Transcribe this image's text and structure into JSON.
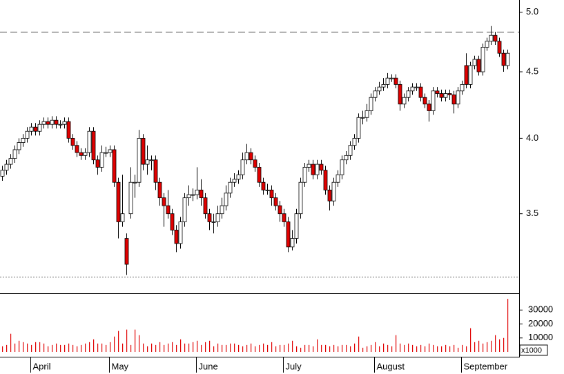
{
  "chart_data": [
    {
      "type": "candlestick",
      "categories": [
        null,
        null,
        null,
        null,
        null,
        null,
        null,
        "April",
        null,
        null,
        null,
        null,
        null,
        null,
        null,
        null,
        null,
        null,
        null,
        null,
        null,
        null,
        null,
        null,
        null,
        null,
        "May",
        null,
        null,
        null,
        null,
        null,
        null,
        null,
        null,
        null,
        null,
        null,
        null,
        null,
        null,
        null,
        null,
        null,
        null,
        null,
        null,
        "June",
        null,
        null,
        null,
        null,
        null,
        null,
        null,
        null,
        null,
        null,
        null,
        null,
        null,
        null,
        null,
        null,
        null,
        null,
        null,
        null,
        "July",
        null,
        null,
        null,
        null,
        null,
        null,
        null,
        null,
        null,
        null,
        null,
        null,
        null,
        null,
        null,
        null,
        null,
        null,
        null,
        null,
        null,
        "August",
        null,
        null,
        null,
        null,
        null,
        null,
        null,
        null,
        null,
        null,
        null,
        null,
        null,
        null,
        null,
        null,
        null,
        null,
        null,
        null,
        "September",
        null,
        null,
        null,
        null,
        null,
        null,
        null,
        null,
        null,
        null,
        null
      ],
      "open": [
        3.74,
        3.78,
        3.82,
        3.86,
        3.92,
        3.97,
        4.0,
        4.05,
        4.08,
        4.05,
        4.1,
        4.12,
        4.1,
        4.13,
        4.1,
        4.1,
        4.12,
        4.0,
        3.95,
        3.9,
        3.88,
        3.9,
        4.05,
        3.85,
        3.8,
        3.9,
        3.9,
        3.92,
        3.7,
        3.45,
        3.35,
        3.5,
        3.7,
        3.7,
        4.0,
        3.82,
        3.85,
        3.85,
        3.7,
        3.6,
        3.55,
        3.5,
        3.4,
        3.32,
        3.45,
        3.6,
        3.62,
        3.62,
        3.65,
        3.6,
        3.5,
        3.45,
        3.45,
        3.5,
        3.55,
        3.63,
        3.7,
        3.72,
        3.75,
        3.85,
        3.9,
        3.85,
        3.8,
        3.7,
        3.65,
        3.65,
        3.6,
        3.55,
        3.5,
        3.45,
        3.3,
        3.35,
        3.5,
        3.7,
        3.8,
        3.82,
        3.75,
        3.82,
        3.78,
        3.65,
        3.58,
        3.7,
        3.75,
        3.85,
        3.88,
        3.95,
        4.0,
        4.15,
        4.15,
        4.2,
        4.3,
        4.35,
        4.38,
        4.4,
        4.45,
        4.45,
        4.4,
        4.25,
        4.3,
        4.35,
        4.38,
        4.38,
        4.3,
        4.25,
        4.2,
        4.35,
        4.33,
        4.3,
        4.33,
        4.32,
        4.25,
        4.35,
        4.55,
        4.4,
        4.55,
        4.6,
        4.5,
        4.7,
        4.75,
        4.8,
        4.75,
        4.65,
        4.55
      ],
      "high": [
        3.81,
        3.85,
        3.89,
        3.95,
        4.0,
        4.03,
        4.08,
        4.11,
        4.11,
        4.13,
        4.15,
        4.15,
        4.16,
        4.16,
        4.13,
        4.15,
        4.15,
        4.03,
        3.98,
        3.93,
        3.93,
        4.08,
        4.08,
        3.88,
        3.95,
        3.94,
        3.95,
        3.95,
        3.73,
        3.75,
        3.38,
        3.8,
        3.75,
        4.06,
        4.03,
        3.95,
        3.88,
        3.88,
        3.73,
        3.63,
        3.65,
        3.53,
        3.43,
        3.48,
        3.63,
        3.68,
        3.66,
        3.8,
        3.72,
        3.63,
        3.53,
        3.5,
        3.55,
        3.6,
        3.68,
        3.73,
        3.76,
        3.78,
        3.9,
        3.96,
        3.93,
        3.88,
        3.83,
        3.73,
        3.69,
        3.68,
        3.63,
        3.58,
        3.53,
        3.48,
        3.4,
        3.53,
        3.73,
        3.83,
        3.85,
        3.85,
        3.85,
        3.85,
        3.81,
        3.68,
        3.73,
        3.78,
        3.88,
        3.91,
        3.98,
        4.03,
        4.18,
        4.2,
        4.25,
        4.33,
        4.38,
        4.42,
        4.45,
        4.49,
        4.48,
        4.48,
        4.43,
        4.33,
        4.38,
        4.41,
        4.41,
        4.41,
        4.33,
        4.28,
        4.38,
        4.38,
        4.36,
        4.36,
        4.36,
        4.35,
        4.38,
        4.43,
        4.65,
        4.58,
        4.63,
        4.63,
        4.73,
        4.78,
        4.88,
        4.83,
        4.78,
        4.68,
        4.68
      ],
      "low": [
        3.71,
        3.75,
        3.79,
        3.83,
        3.89,
        3.94,
        3.97,
        4.02,
        4.02,
        4.02,
        4.07,
        4.07,
        4.07,
        4.07,
        4.07,
        4.07,
        3.97,
        3.92,
        3.87,
        3.85,
        3.85,
        3.87,
        3.82,
        3.75,
        3.77,
        3.87,
        3.87,
        3.67,
        3.35,
        3.42,
        3.14,
        3.47,
        3.6,
        3.67,
        3.78,
        3.75,
        3.78,
        3.65,
        3.55,
        3.42,
        3.47,
        3.37,
        3.27,
        3.29,
        3.42,
        3.55,
        3.58,
        3.59,
        3.55,
        3.47,
        3.4,
        3.38,
        3.42,
        3.47,
        3.52,
        3.6,
        3.67,
        3.69,
        3.72,
        3.82,
        3.82,
        3.77,
        3.67,
        3.62,
        3.62,
        3.55,
        3.52,
        3.45,
        3.42,
        3.27,
        3.28,
        3.32,
        3.47,
        3.67,
        3.77,
        3.72,
        3.72,
        3.75,
        3.62,
        3.52,
        3.55,
        3.67,
        3.72,
        3.82,
        3.85,
        3.92,
        3.97,
        4.1,
        4.12,
        4.17,
        4.27,
        4.32,
        4.35,
        4.37,
        4.42,
        4.37,
        4.2,
        4.22,
        4.27,
        4.32,
        4.35,
        4.27,
        4.22,
        4.12,
        4.17,
        4.3,
        4.27,
        4.27,
        4.28,
        4.18,
        4.22,
        4.32,
        4.37,
        4.37,
        4.52,
        4.47,
        4.47,
        4.67,
        4.72,
        4.72,
        4.62,
        4.5,
        4.52
      ],
      "close": [
        3.78,
        3.82,
        3.86,
        3.92,
        3.97,
        4.0,
        4.05,
        4.08,
        4.05,
        4.1,
        4.12,
        4.1,
        4.13,
        4.1,
        4.1,
        4.12,
        4.0,
        3.95,
        3.9,
        3.88,
        3.9,
        4.05,
        3.85,
        3.8,
        3.9,
        3.9,
        3.92,
        3.7,
        3.45,
        3.5,
        3.2,
        3.7,
        3.7,
        4.0,
        3.82,
        3.85,
        3.85,
        3.7,
        3.6,
        3.55,
        3.5,
        3.4,
        3.32,
        3.45,
        3.6,
        3.62,
        3.62,
        3.65,
        3.6,
        3.5,
        3.45,
        3.45,
        3.5,
        3.55,
        3.63,
        3.7,
        3.72,
        3.75,
        3.85,
        3.9,
        3.85,
        3.8,
        3.7,
        3.65,
        3.65,
        3.6,
        3.55,
        3.5,
        3.45,
        3.3,
        3.35,
        3.5,
        3.7,
        3.8,
        3.82,
        3.75,
        3.82,
        3.78,
        3.65,
        3.58,
        3.7,
        3.75,
        3.85,
        3.88,
        3.95,
        4.0,
        4.15,
        4.15,
        4.2,
        4.3,
        4.35,
        4.38,
        4.4,
        4.45,
        4.45,
        4.4,
        4.25,
        4.3,
        4.35,
        4.38,
        4.38,
        4.3,
        4.25,
        4.2,
        4.35,
        4.33,
        4.3,
        4.33,
        4.32,
        4.25,
        4.35,
        4.4,
        4.4,
        4.55,
        4.6,
        4.5,
        4.7,
        4.75,
        4.8,
        4.75,
        4.65,
        4.55,
        4.65
      ],
      "up_color": "#ffffff",
      "down_color": "#e00000",
      "ylim": [
        3.04,
        5.11
      ],
      "log_scale": true,
      "yticks": [
        3.5,
        {
          "value": 4,
          "label": "4.0"
        },
        4.5,
        {
          "value": 5,
          "label": "5.0"
        }
      ],
      "reference_lines": [
        {
          "value": 4.83,
          "style": "dashed"
        },
        {
          "value": 3.13,
          "style": "dotted"
        }
      ]
    },
    {
      "type": "bar",
      "color": "#e00000",
      "values": [
        4000,
        5000,
        13000,
        6000,
        8000,
        7000,
        6000,
        5000,
        7000,
        7000,
        6000,
        4000,
        5000,
        6000,
        5000,
        5000,
        6000,
        5000,
        4000,
        5000,
        6000,
        7000,
        9000,
        6000,
        6000,
        5000,
        7000,
        11000,
        15000,
        6000,
        16000,
        5000,
        16000,
        12000,
        6000,
        4000,
        6000,
        5000,
        7000,
        5000,
        6000,
        7000,
        5000,
        9000,
        6000,
        6000,
        7000,
        8000,
        5000,
        7000,
        8000,
        4000,
        6000,
        5000,
        5000,
        6000,
        6000,
        5000,
        4000,
        5000,
        6000,
        4000,
        5000,
        6000,
        5000,
        7000,
        4000,
        5000,
        5000,
        6000,
        8000,
        4000,
        3000,
        5000,
        5000,
        4000,
        9000,
        5000,
        5000,
        4000,
        5000,
        4000,
        5000,
        5000,
        4000,
        6000,
        11000,
        3000,
        4000,
        5000,
        7000,
        4000,
        6000,
        5000,
        4000,
        12000,
        6000,
        5000,
        6000,
        5000,
        4000,
        5000,
        4000,
        6000,
        5000,
        4000,
        4000,
        5000,
        4000,
        5000,
        3000,
        5000,
        4000,
        17000,
        7000,
        8000,
        6000,
        7000,
        8000,
        12000,
        9000,
        10000,
        38000
      ],
      "ylim": [
        0,
        42000
      ],
      "yticks": [
        10000,
        20000,
        30000
      ],
      "unit_label": "x1000"
    }
  ]
}
